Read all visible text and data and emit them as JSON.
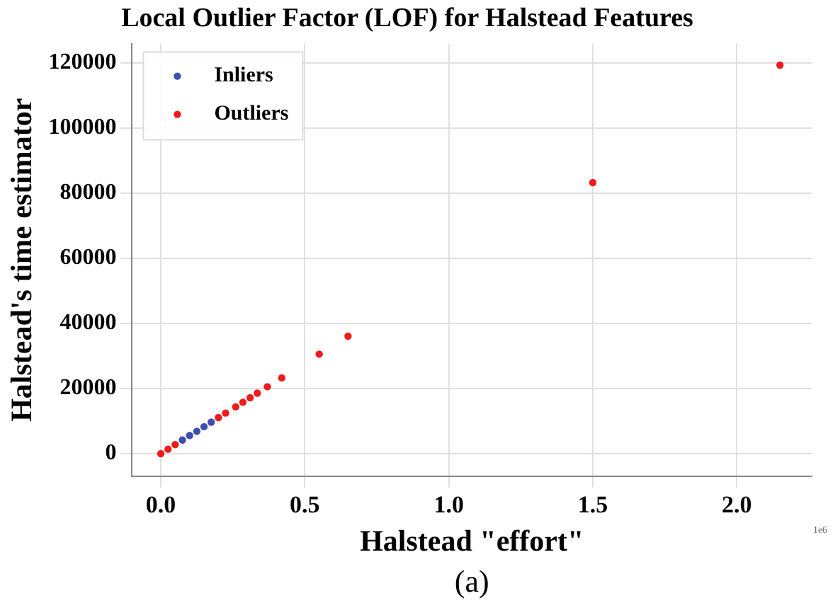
{
  "chart_data": {
    "type": "scatter",
    "title": "Local Outlier Factor (LOF) for Halstead Features",
    "xlabel": "Halstead \"effort\"",
    "ylabel": "Halstead's time estimator",
    "annotations": [
      "1e6",
      "(a)"
    ],
    "xlim": [
      -0.1,
      2.26
    ],
    "ylim": [
      -6900,
      126000
    ],
    "xticks": [
      {
        "value": 0,
        "label": "0.0"
      },
      {
        "value": 0.5,
        "label": "0.5"
      },
      {
        "value": 1,
        "label": "1.0"
      },
      {
        "value": 1.5,
        "label": "1.5"
      },
      {
        "value": 2,
        "label": "2.0"
      }
    ],
    "yticks": [
      0,
      20000,
      40000,
      60000,
      80000,
      100000,
      120000
    ],
    "grid": true,
    "legend": "top left",
    "marker": "circle",
    "series": [
      {
        "name": "Inliers",
        "color": "#3f4fb0",
        "x": [
          0.075,
          0.1,
          0.125,
          0.15,
          0.175
        ],
        "values": [
          4200,
          5600,
          6900,
          8300,
          9700
        ]
      },
      {
        "name": "Outliers",
        "color": "#ee1c1c",
        "x": [
          0,
          0.025,
          0.05,
          0.2,
          0.225,
          0.26,
          0.285,
          0.31,
          0.335,
          0.37,
          0.42,
          0.55,
          0.65,
          1.5,
          2.15
        ],
        "values": [
          0,
          1400,
          2800,
          11100,
          12500,
          14400,
          15800,
          17200,
          18600,
          20600,
          23300,
          30600,
          36100,
          83300,
          119400
        ]
      }
    ]
  }
}
